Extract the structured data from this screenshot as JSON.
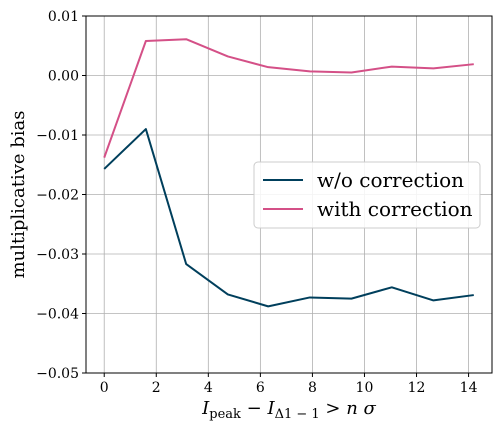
{
  "chart_data": {
    "type": "line",
    "title": "",
    "xlabel": "I_peak − I_Δ1−1 > n σ",
    "ylabel": "multiplicative bias",
    "xlim": [
      -0.7,
      14.9
    ],
    "ylim": [
      -0.05,
      0.01
    ],
    "grid": true,
    "legend_position": "center-right",
    "x_ticks": [
      0,
      2,
      4,
      6,
      8,
      10,
      12,
      14
    ],
    "y_ticks": [
      0.01,
      0.0,
      -0.01,
      -0.02,
      -0.03,
      -0.04,
      -0.05
    ],
    "x_tick_labels": [
      "0",
      "2",
      "4",
      "6",
      "8",
      "10",
      "12",
      "14"
    ],
    "y_tick_labels": [
      "0.01",
      "0.00",
      "−0.01",
      "−0.02",
      "−0.03",
      "−0.04",
      "−0.05"
    ],
    "x": [
      0.0,
      1.6,
      3.15,
      4.75,
      6.3,
      7.9,
      9.5,
      11.05,
      12.65,
      14.2
    ],
    "series": [
      {
        "name": "w/o correction",
        "color": "#003f5c",
        "values": [
          -0.0157,
          -0.009,
          -0.0317,
          -0.0368,
          -0.0388,
          -0.0373,
          -0.0375,
          -0.0356,
          -0.0378,
          -0.0369
        ]
      },
      {
        "name": "with correction",
        "color": "#d45087",
        "values": [
          -0.0138,
          0.0058,
          0.0061,
          0.0032,
          0.0014,
          0.0007,
          0.0005,
          0.0015,
          0.0012,
          0.0019
        ]
      }
    ]
  }
}
